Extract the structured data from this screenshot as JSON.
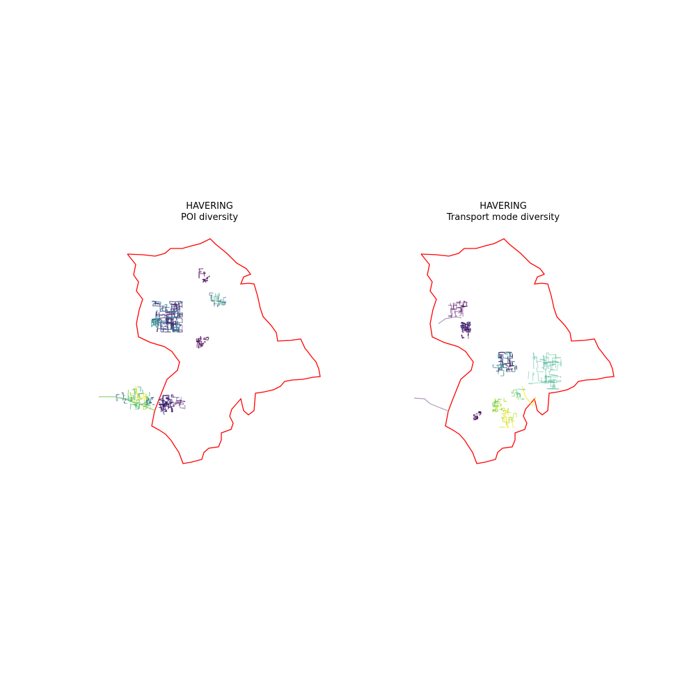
{
  "maps": [
    {
      "title": "HAVERING",
      "subtitle": "POI diversity",
      "boundary_color": "#ff0000",
      "colormap": "viridis"
    },
    {
      "title": "HAVERING",
      "subtitle": "Transport mode diversity",
      "boundary_color": "#ff0000",
      "colormap": "viridis"
    }
  ]
}
